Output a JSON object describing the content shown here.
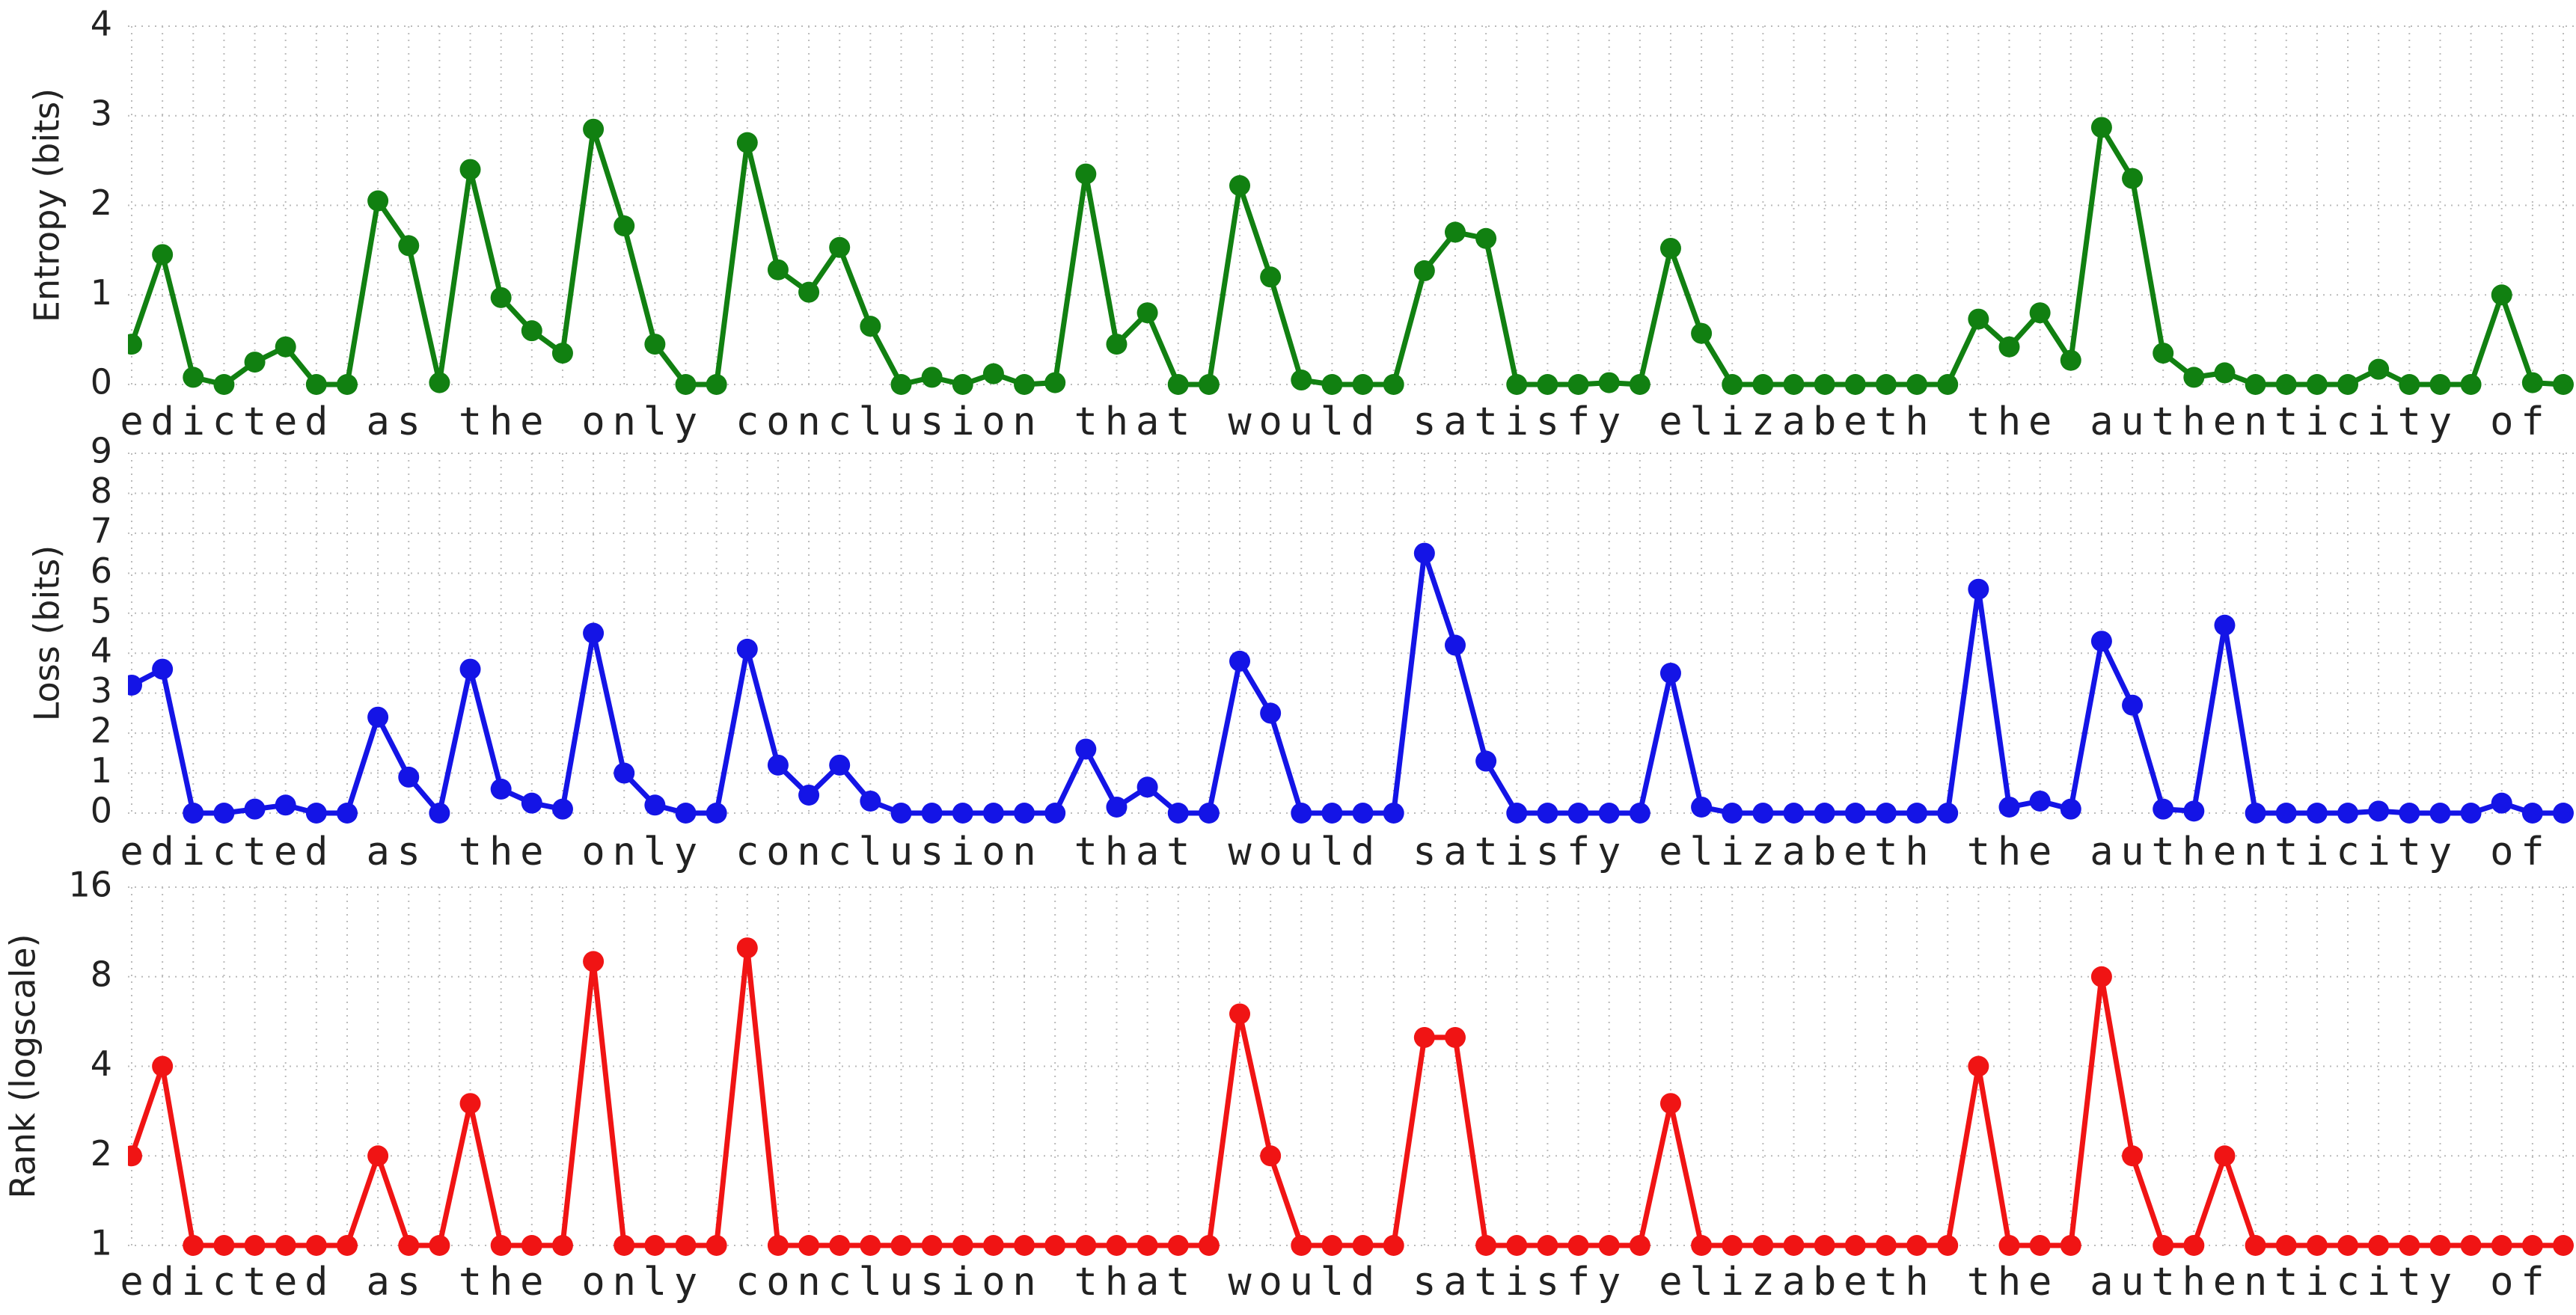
{
  "chart_data": [
    {
      "type": "line",
      "ylabel": "Entropy (bits)",
      "color": "#118011",
      "categories": [
        "e",
        "d",
        "i",
        "c",
        "t",
        "e",
        "d",
        null,
        "a",
        "s",
        null,
        "t",
        "h",
        "e",
        null,
        "o",
        "n",
        "l",
        "y",
        null,
        "c",
        "o",
        "n",
        "c",
        "l",
        "u",
        "s",
        "i",
        "o",
        "n",
        null,
        "t",
        "h",
        "a",
        "t",
        null,
        "w",
        "o",
        "u",
        "l",
        "d",
        null,
        "s",
        "a",
        "t",
        "i",
        "s",
        "f",
        "y",
        null,
        "e",
        "l",
        "i",
        "z",
        "a",
        "b",
        "e",
        "t",
        "h",
        null,
        "t",
        "h",
        "e",
        null,
        "a",
        "u",
        "t",
        "h",
        "e",
        "n",
        "t",
        "i",
        "c",
        "i",
        "t",
        "y",
        null,
        "o",
        "f",
        null
      ],
      "values": [
        0.45,
        1.45,
        0.08,
        0,
        0.25,
        0.42,
        0,
        0,
        2.05,
        1.55,
        0.02,
        2.4,
        0.97,
        0.6,
        0.35,
        2.85,
        1.77,
        0.45,
        0,
        0,
        2.7,
        1.28,
        1.03,
        1.53,
        0.65,
        0,
        0.08,
        0,
        0.12,
        0,
        0.02,
        2.35,
        0.45,
        0.8,
        0,
        0,
        2.22,
        1.2,
        0.05,
        0,
        0,
        0,
        1.27,
        1.7,
        1.63,
        0,
        0,
        0,
        0.02,
        0,
        1.52,
        0.57,
        0,
        0,
        0,
        0,
        0,
        0,
        0,
        0,
        0.73,
        0.42,
        0.8,
        0.27,
        2.87,
        2.3,
        0.35,
        0.08,
        0.13,
        0,
        0,
        0,
        0,
        0.17,
        0,
        0,
        0,
        1.0,
        0.02,
        0
      ],
      "ylim": [
        0,
        4
      ],
      "yticks": [
        0,
        1,
        2,
        3,
        4
      ],
      "grid": true
    },
    {
      "type": "line",
      "ylabel": "Loss (bits)",
      "color": "#1414e6",
      "categories": [
        "e",
        "d",
        "i",
        "c",
        "t",
        "e",
        "d",
        null,
        "a",
        "s",
        null,
        "t",
        "h",
        "e",
        null,
        "o",
        "n",
        "l",
        "y",
        null,
        "c",
        "o",
        "n",
        "c",
        "l",
        "u",
        "s",
        "i",
        "o",
        "n",
        null,
        "t",
        "h",
        "a",
        "t",
        null,
        "w",
        "o",
        "u",
        "l",
        "d",
        null,
        "s",
        "a",
        "t",
        "i",
        "s",
        "f",
        "y",
        null,
        "e",
        "l",
        "i",
        "z",
        "a",
        "b",
        "e",
        "t",
        "h",
        null,
        "t",
        "h",
        "e",
        null,
        "a",
        "u",
        "t",
        "h",
        "e",
        "n",
        "t",
        "i",
        "c",
        "i",
        "t",
        "y",
        null,
        "o",
        "f",
        null
      ],
      "values": [
        3.2,
        3.6,
        0,
        0,
        0.1,
        0.2,
        0,
        0,
        2.4,
        0.9,
        0,
        3.6,
        0.6,
        0.25,
        0.1,
        4.5,
        1.0,
        0.2,
        0,
        0,
        4.1,
        1.2,
        0.45,
        1.2,
        0.3,
        0,
        0,
        0,
        0,
        0,
        0,
        1.6,
        0.15,
        0.65,
        0,
        0,
        3.8,
        2.5,
        0,
        0,
        0,
        0,
        6.5,
        4.2,
        1.3,
        0,
        0,
        0,
        0,
        0,
        3.5,
        0.15,
        0,
        0,
        0,
        0,
        0,
        0,
        0,
        0,
        5.6,
        0.15,
        0.3,
        0.1,
        4.3,
        2.7,
        0.1,
        0.05,
        4.7,
        0,
        0,
        0,
        0,
        0.05,
        0,
        0,
        0,
        0.25,
        0,
        0
      ],
      "ylim": [
        0,
        9
      ],
      "yticks": [
        0,
        1,
        2,
        3,
        4,
        5,
        6,
        7,
        8,
        9
      ],
      "grid": true
    },
    {
      "type": "line",
      "ylabel": "Rank (logscale)",
      "color": "#f01414",
      "log_scale": true,
      "log_base": 2,
      "categories": [
        "e",
        "d",
        "i",
        "c",
        "t",
        "e",
        "d",
        null,
        "a",
        "s",
        null,
        "t",
        "h",
        "e",
        null,
        "o",
        "n",
        "l",
        "y",
        null,
        "c",
        "o",
        "n",
        "c",
        "l",
        "u",
        "s",
        "i",
        "o",
        "n",
        null,
        "t",
        "h",
        "a",
        "t",
        null,
        "w",
        "o",
        "u",
        "l",
        "d",
        null,
        "s",
        "a",
        "t",
        "i",
        "s",
        "f",
        "y",
        null,
        "e",
        "l",
        "i",
        "z",
        "a",
        "b",
        "e",
        "t",
        "h",
        null,
        "t",
        "h",
        "e",
        null,
        "a",
        "u",
        "t",
        "h",
        "e",
        "n",
        "t",
        "i",
        "c",
        "i",
        "t",
        "y",
        null,
        "o",
        "f",
        null
      ],
      "values": [
        2,
        4,
        1,
        1,
        1,
        1,
        1,
        1,
        2,
        1,
        1,
        3,
        1,
        1,
        1,
        9,
        1,
        1,
        1,
        1,
        10,
        1,
        1,
        1,
        1,
        1,
        1,
        1,
        1,
        1,
        1,
        1,
        1,
        1,
        1,
        1,
        6,
        2,
        1,
        1,
        1,
        1,
        5,
        5,
        1,
        1,
        1,
        1,
        1,
        1,
        3,
        1,
        1,
        1,
        1,
        1,
        1,
        1,
        1,
        1,
        4,
        1,
        1,
        1,
        8,
        2,
        1,
        1,
        2,
        1,
        1,
        1,
        1,
        1,
        1,
        1,
        1,
        1,
        1,
        1
      ],
      "ylim": [
        1,
        16
      ],
      "yticks": [
        1,
        2,
        4,
        8,
        16
      ],
      "grid": true
    }
  ]
}
